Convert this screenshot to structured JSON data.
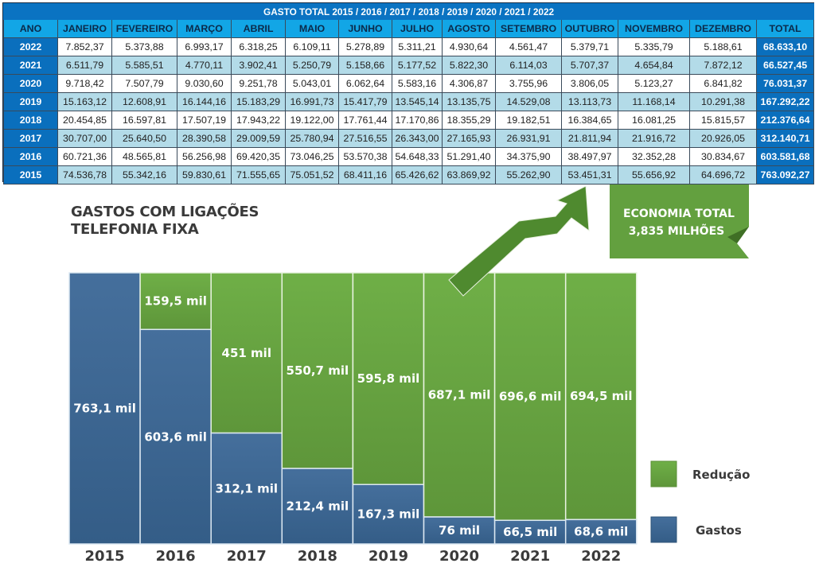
{
  "table": {
    "title": "GASTO TOTAL 2015 / 2016 / 2017 / 2018 / 2019 / 2020 / 2021 / 2022",
    "headers": [
      "ANO",
      "JANEIRO",
      "FEVEREIRO",
      "MARÇO",
      "ABRIL",
      "MAIO",
      "JUNHO",
      "JULHO",
      "AGOSTO",
      "SETEMBRO",
      "OUTUBRO",
      "NOVEMBRO",
      "DEZEMBRO",
      "TOTAL"
    ],
    "rows": [
      {
        "year": "2022",
        "months": [
          "7.852,37",
          "5.373,88",
          "6.993,17",
          "6.318,25",
          "6.109,11",
          "5.278,89",
          "5.311,21",
          "4.930,64",
          "4.561,47",
          "5.379,71",
          "5.335,79",
          "5.188,61"
        ],
        "total": "68.633,10"
      },
      {
        "year": "2021",
        "months": [
          "6.511,79",
          "5.585,51",
          "4.770,11",
          "3.902,41",
          "5.250,79",
          "5.158,66",
          "5.177,52",
          "5.822,30",
          "6.114,03",
          "5.707,37",
          "4.654,84",
          "7.872,12"
        ],
        "total": "66.527,45"
      },
      {
        "year": "2020",
        "months": [
          "9.718,42",
          "7.507,79",
          "9.030,60",
          "9.251,78",
          "5.043,01",
          "6.062,64",
          "5.583,16",
          "4.306,87",
          "3.755,96",
          "3.806,05",
          "5.123,27",
          "6.841,82"
        ],
        "total": "76.031,37"
      },
      {
        "year": "2019",
        "months": [
          "15.163,12",
          "12.608,91",
          "16.144,16",
          "15.183,29",
          "16.991,73",
          "15.417,79",
          "13.545,14",
          "13.135,75",
          "14.529,08",
          "13.113,73",
          "11.168,14",
          "10.291,38"
        ],
        "total": "167.292,22"
      },
      {
        "year": "2018",
        "months": [
          "20.454,85",
          "16.597,81",
          "17.507,19",
          "17.943,22",
          "19.122,00",
          "17.761,44",
          "17.170,86",
          "18.355,29",
          "19.182,51",
          "16.384,65",
          "16.081,25",
          "15.815,57"
        ],
        "total": "212.376,64"
      },
      {
        "year": "2017",
        "months": [
          "30.707,00",
          "25.640,50",
          "28.390,58",
          "29.009,59",
          "25.780,94",
          "27.516,55",
          "26.343,00",
          "27.165,93",
          "26.931,91",
          "21.811,94",
          "21.916,72",
          "20.926,05"
        ],
        "total": "312.140,71"
      },
      {
        "year": "2016",
        "months": [
          "60.721,36",
          "48.565,81",
          "56.256,98",
          "69.420,35",
          "73.046,25",
          "53.570,38",
          "54.648,33",
          "51.291,40",
          "34.375,90",
          "38.497,97",
          "32.352,28",
          "30.834,67"
        ],
        "total": "603.581,68"
      },
      {
        "year": "2015",
        "months": [
          "74.536,78",
          "55.342,16",
          "59.830,61",
          "71.555,65",
          "75.051,52",
          "68.411,16",
          "65.426,62",
          "63.869,92",
          "55.262,90",
          "53.451,31",
          "55.656,92",
          "64.696,72"
        ],
        "total": "763.092,27"
      }
    ]
  },
  "chart_title_lines": [
    "GASTOS COM LIGAÇÕES",
    "TELEFONIA FIXA"
  ],
  "economy_callout": {
    "line1": "ECONOMIA TOTAL",
    "line2": "3,835 MILHÕES"
  },
  "colors": {
    "reducao": "#63a03f",
    "gastos": "#3c6a96",
    "table_header": "#12a6e6",
    "table_title": "#0a73c2",
    "table_year": "#0a6fbd",
    "row_alt": "#b3dbe8"
  },
  "chart_data": {
    "type": "bar",
    "stacked": true,
    "title": "GASTOS COM LIGAÇÕES TELEFONIA FIXA",
    "xlabel": "",
    "ylabel": "",
    "categories": [
      "2015",
      "2016",
      "2017",
      "2018",
      "2019",
      "2020",
      "2021",
      "2022"
    ],
    "ylim": [
      0,
      763.1
    ],
    "units": "mil",
    "series": [
      {
        "name": "Gastos",
        "values": [
          763.1,
          603.6,
          312.1,
          212.4,
          167.3,
          76,
          66.5,
          68.6
        ],
        "labels": [
          "763,1 mil",
          "603,6 mil",
          "312,1 mil",
          "212,4 mil",
          "167,3 mil",
          "76 mil",
          "66,5 mil",
          "68,6 mil"
        ]
      },
      {
        "name": "Redução",
        "values": [
          0,
          159.5,
          451,
          550.7,
          595.8,
          687.1,
          696.6,
          694.5
        ],
        "labels": [
          "",
          "159,5 mil",
          "451 mil",
          "550,7 mil",
          "595,8 mil",
          "687,1 mil",
          "696,6 mil",
          "694,5 mil"
        ]
      }
    ],
    "legend": {
      "position": "right",
      "entries": [
        "Redução",
        "Gastos"
      ]
    },
    "grid": false
  }
}
